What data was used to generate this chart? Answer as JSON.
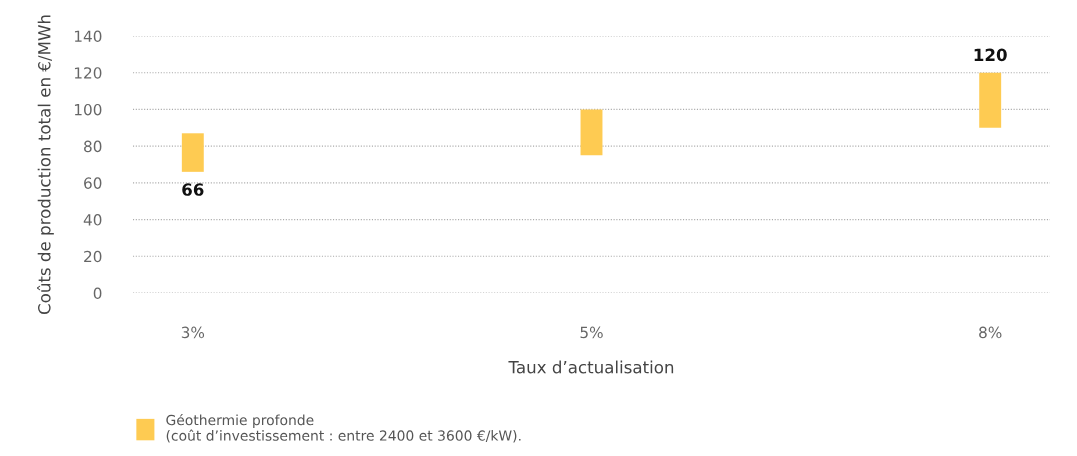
{
  "chart_data": {
    "type": "bar",
    "xlabel": "Taux d’actualisation",
    "ylabel": "Coûts de production total en €/MWh",
    "categories": [
      "3%",
      "5%",
      "8%"
    ],
    "series": [
      {
        "name": "Géothermie profonde\n(coût d’investissement : entre 2400 et 3600 €/kW).",
        "color": "#fecb52",
        "values": [
          21,
          25,
          30
        ],
        "base": [
          66,
          75,
          90
        ]
      }
    ],
    "ylim": [
      0,
      140
    ],
    "yticks": [
      0,
      20,
      40,
      60,
      80,
      100,
      120,
      140
    ],
    "grid": "y",
    "legend": "bottom left",
    "annotations": [
      {
        "text": "66",
        "x": "3%",
        "y": 66
      },
      {
        "text": "120",
        "x": "8%",
        "y": 120
      }
    ]
  }
}
